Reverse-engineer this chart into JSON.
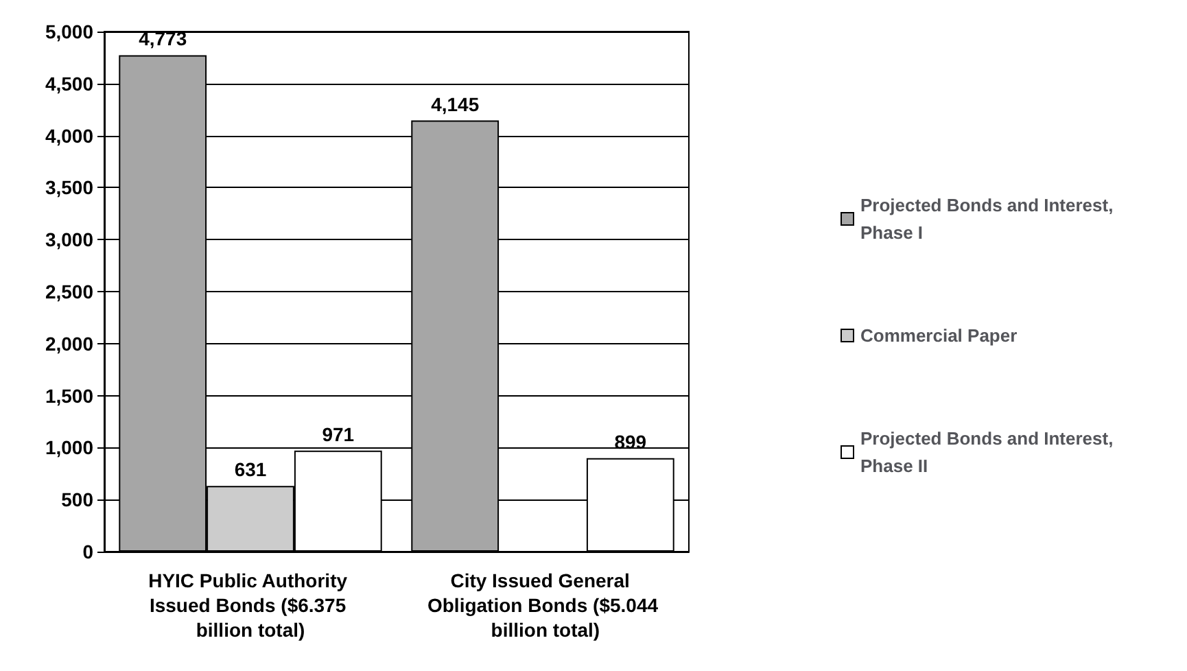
{
  "chart_data": {
    "type": "bar",
    "categories": [
      "HYIC Public Authority Issued Bonds ($6.375 billion total)",
      "City Issued General Obligation Bonds ($5.044 billion total)"
    ],
    "series": [
      {
        "name": "Projected Bonds and Interest, Phase I",
        "color": "#a6a6a6",
        "values": [
          4773,
          4145
        ],
        "value_labels": [
          "4,773",
          "4,145"
        ]
      },
      {
        "name": "Commercial Paper",
        "color": "#cccccc",
        "values": [
          631,
          null
        ],
        "value_labels": [
          "631",
          null
        ]
      },
      {
        "name": "Projected Bonds and Interest, Phase II",
        "color": "#ffffff",
        "values": [
          971,
          899
        ],
        "value_labels": [
          "971",
          "899"
        ]
      }
    ],
    "ylim": [
      0,
      5000
    ],
    "yticks": [
      {
        "value": 0,
        "label": "0"
      },
      {
        "value": 500,
        "label": "500"
      },
      {
        "value": 1000,
        "label": "1,000"
      },
      {
        "value": 1500,
        "label": "1,500"
      },
      {
        "value": 2000,
        "label": "2,000"
      },
      {
        "value": 2500,
        "label": "2,500"
      },
      {
        "value": 3000,
        "label": "3,000"
      },
      {
        "value": 3500,
        "label": "3,500"
      },
      {
        "value": 4000,
        "label": "4,000"
      },
      {
        "value": 4500,
        "label": "4,500"
      },
      {
        "value": 5000,
        "label": "5,000"
      }
    ],
    "grid": "y",
    "legend": "right"
  }
}
